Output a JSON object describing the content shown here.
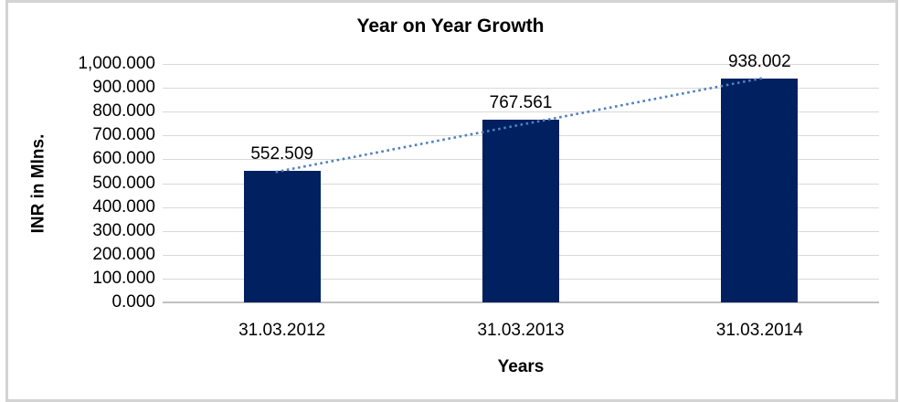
{
  "chart_data": {
    "type": "bar",
    "title": "Year on Year Growth",
    "xlabel": "Years",
    "ylabel": "INR in Mlns.",
    "categories": [
      "31.03.2012",
      "31.03.2013",
      "31.03.2014"
    ],
    "series": [
      {
        "name": "INR in Mlns.",
        "values": [
          552.509,
          767.561,
          938.002
        ]
      }
    ],
    "data_labels": [
      "552.509",
      "767.561",
      "938.002"
    ],
    "ylim": [
      0,
      1000
    ],
    "ytick_step": 100,
    "ytick_labels": [
      "1,000.000",
      "900.000",
      "800.000",
      "700.000",
      "600.000",
      "500.000",
      "400.000",
      "300.000",
      "200.000",
      "100.000",
      "0.000"
    ],
    "grid": "horizontal",
    "legend": "none",
    "trendline": {
      "type": "linear",
      "style": "dotted",
      "color": "#4f81bd"
    },
    "colors": {
      "bar": "#002060",
      "gridline": "#d9d9d9",
      "axis_line": "#c0c0c0",
      "frame_border": "#d3d3d3",
      "text": "#000000"
    }
  }
}
